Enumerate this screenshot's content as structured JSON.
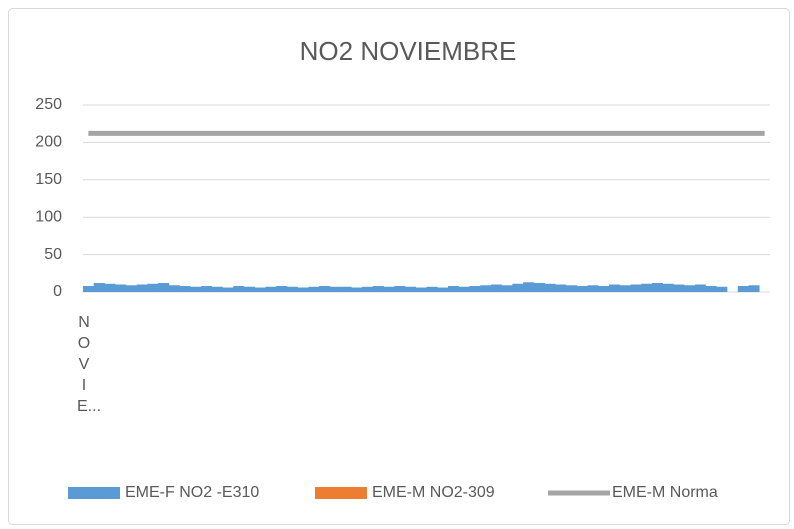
{
  "chart_data": {
    "type": "bar",
    "title": "NO2 NOVIEMBRE",
    "categories": [
      "N O V I E...",
      null,
      null,
      null,
      null,
      null,
      null,
      null,
      null,
      null,
      null,
      null,
      null,
      null,
      null,
      null,
      null,
      null,
      null,
      null,
      null,
      null,
      null,
      null,
      null,
      null,
      null,
      null,
      null,
      null,
      null,
      null,
      null,
      null,
      null,
      null,
      null,
      null,
      null,
      null,
      null,
      null,
      null,
      null,
      null,
      null,
      null,
      null,
      null,
      null,
      null,
      null,
      null,
      null,
      null,
      null,
      null,
      null,
      null,
      null,
      null,
      null,
      null,
      null
    ],
    "series": [
      {
        "name": "EME-F NO2 -E310",
        "color": "#5b9bd5",
        "type": "bar",
        "values": [
          8,
          12,
          11,
          10,
          9,
          10,
          11,
          12,
          9,
          8,
          7,
          8,
          7,
          6,
          8,
          7,
          6,
          7,
          8,
          7,
          6,
          7,
          8,
          7,
          7,
          6,
          7,
          8,
          7,
          8,
          7,
          6,
          7,
          6,
          8,
          7,
          8,
          9,
          10,
          9,
          11,
          13,
          12,
          11,
          10,
          9,
          8,
          9,
          8,
          10,
          9,
          10,
          11,
          12,
          11,
          10,
          9,
          10,
          8,
          7,
          null,
          8,
          9,
          null
        ]
      },
      {
        "name": "EME-M NO2-309",
        "color": "#ed7d31",
        "type": "bar",
        "values": [
          null,
          null,
          null,
          null,
          null,
          null,
          null,
          null,
          null,
          null,
          null,
          null,
          null,
          null,
          null,
          null,
          null,
          null,
          null,
          null,
          null,
          null,
          null,
          null,
          null,
          null,
          null,
          null,
          null,
          null,
          null,
          null,
          null,
          null,
          null,
          null,
          null,
          null,
          null,
          null,
          null,
          null,
          null,
          null,
          null,
          null,
          null,
          null,
          null,
          null,
          null,
          null,
          null,
          null,
          null,
          null,
          null,
          null,
          null,
          null,
          null,
          null,
          null,
          null
        ]
      },
      {
        "name": "EME-M Norma",
        "color": "#a5a5a5",
        "type": "line",
        "values": [
          212,
          212,
          212,
          212,
          212,
          212,
          212,
          212,
          212,
          212,
          212,
          212,
          212,
          212,
          212,
          212,
          212,
          212,
          212,
          212,
          212,
          212,
          212,
          212,
          212,
          212,
          212,
          212,
          212,
          212,
          212,
          212,
          212,
          212,
          212,
          212,
          212,
          212,
          212,
          212,
          212,
          212,
          212,
          212,
          212,
          212,
          212,
          212,
          212,
          212,
          212,
          212,
          212,
          212,
          212,
          212,
          212,
          212,
          212,
          212,
          212,
          212,
          212,
          212
        ]
      }
    ],
    "ylim": [
      0,
      250
    ],
    "yticks": [
      0,
      50,
      100,
      150,
      200,
      250
    ],
    "grid": true,
    "legend": "bottom"
  }
}
